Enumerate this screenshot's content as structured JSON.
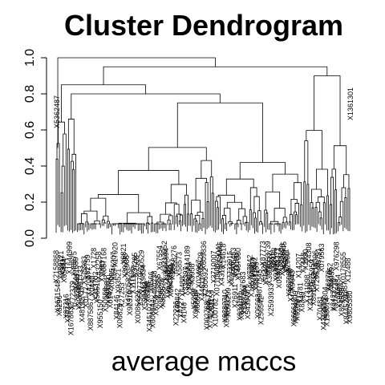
{
  "chart_data": {
    "type": "dendrogram",
    "title": "Cluster Dendrogram",
    "xlabel": "average maccs",
    "ylabel": "",
    "ylim": [
      0,
      1.0
    ],
    "yticks": [
      "0.0",
      "0.2",
      "0.4",
      "0.6",
      "0.8",
      "1.0"
    ],
    "ytick_values": [
      0,
      0.2,
      0.4,
      0.6,
      0.8,
      1.0
    ],
    "leaf_count_estimate": 180,
    "merges": [
      {
        "height": 1.0
      },
      {
        "height": 0.95
      },
      {
        "height": 0.9
      },
      {
        "height": 0.86
      },
      {
        "height": 0.85
      },
      {
        "height": 0.8
      },
      {
        "height": 0.78
      },
      {
        "height": 0.73
      },
      {
        "height": 0.7
      },
      {
        "height": 0.66
      }
    ],
    "visible_leaf_labels": [
      "X5362487",
      "X1361301"
    ],
    "grid": false
  }
}
